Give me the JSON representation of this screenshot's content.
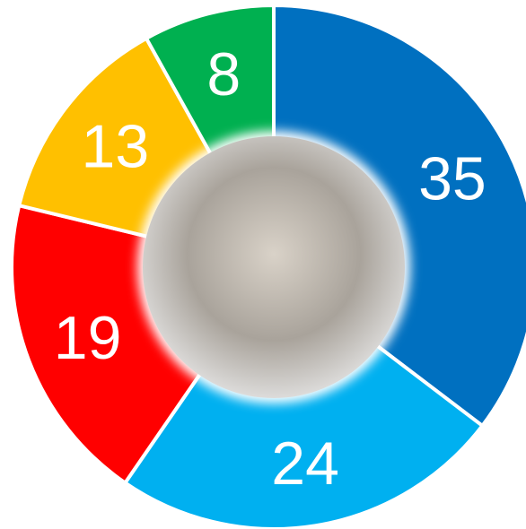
{
  "chart_data": {
    "type": "pie",
    "donut": true,
    "values": [
      35,
      24,
      19,
      13,
      8
    ],
    "colors": [
      "#0070c0",
      "#00b0f0",
      "#ff0000",
      "#ffc000",
      "#00b050"
    ]
  }
}
